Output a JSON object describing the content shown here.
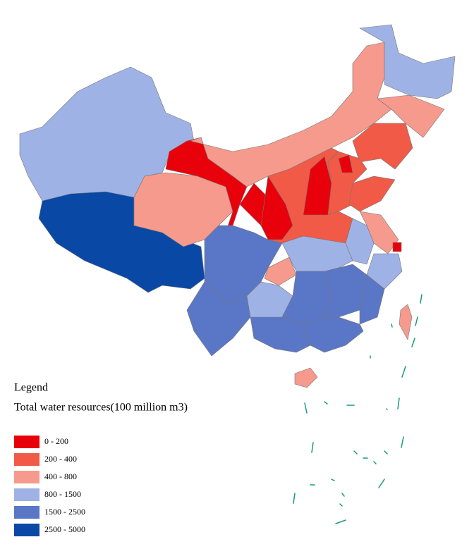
{
  "legend": {
    "title": "Legend",
    "subtitle": "Total water resources(100 million m3)",
    "items": [
      {
        "label": "0 - 200",
        "color": "#e8000b"
      },
      {
        "label": "200 - 400",
        "color": "#f05a46"
      },
      {
        "label": "400 - 800",
        "color": "#f59a8c"
      },
      {
        "label": "800 - 1500",
        "color": "#9fb2e6"
      },
      {
        "label": "1500 - 2500",
        "color": "#5a76c6"
      },
      {
        "label": "2500 - 5000",
        "color": "#0a48a6"
      }
    ]
  }
}
